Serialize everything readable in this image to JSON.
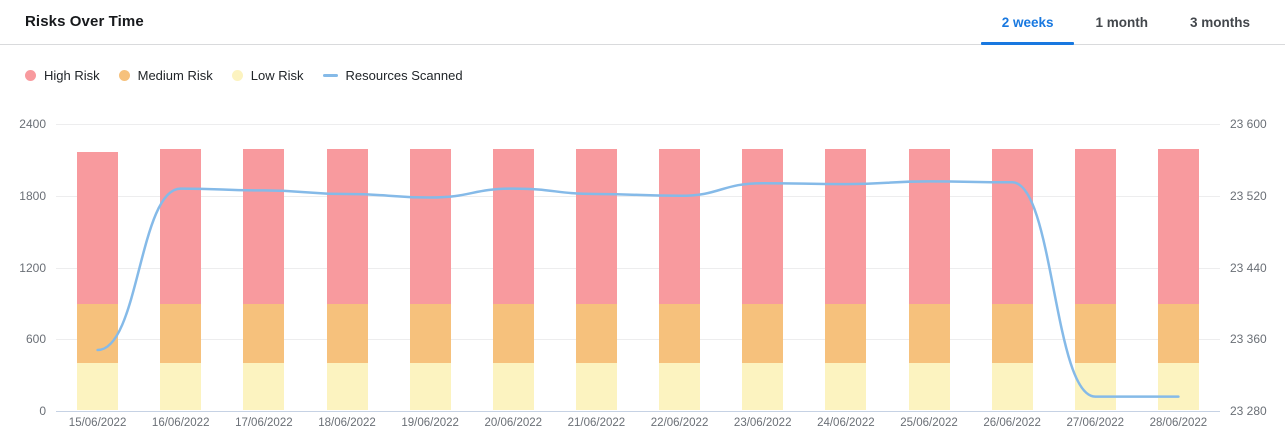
{
  "header": {
    "title": "Risks Over Time",
    "tabs": [
      {
        "label": "2 weeks",
        "active": true
      },
      {
        "label": "1 month",
        "active": false
      },
      {
        "label": "3 months",
        "active": false
      }
    ],
    "tab_active_color": "#1878e0"
  },
  "legend": [
    {
      "label": "High Risk",
      "swatch": "dot",
      "color": "#f89a9e"
    },
    {
      "label": "Medium Risk",
      "swatch": "dot",
      "color": "#f6c17c"
    },
    {
      "label": "Low Risk",
      "swatch": "dot",
      "color": "#fcf3c0"
    },
    {
      "label": "Resources Scanned",
      "swatch": "line",
      "color": "#85bae8"
    }
  ],
  "chart_data": {
    "type": "bar+line",
    "title": "Risks Over Time",
    "categories": [
      "15/06/2022",
      "16/06/2022",
      "17/06/2022",
      "18/06/2022",
      "19/06/2022",
      "20/06/2022",
      "21/06/2022",
      "22/06/2022",
      "23/06/2022",
      "24/06/2022",
      "25/06/2022",
      "26/06/2022",
      "27/06/2022",
      "28/06/2022"
    ],
    "series": [
      {
        "name": "Low Risk",
        "type": "bar",
        "stacked": true,
        "axis": "left",
        "color": "#fcf3c0",
        "values": [
          390,
          390,
          390,
          390,
          390,
          390,
          390,
          390,
          390,
          390,
          390,
          390,
          390,
          390
        ]
      },
      {
        "name": "Medium Risk",
        "type": "bar",
        "stacked": true,
        "axis": "left",
        "color": "#f6c17c",
        "values": [
          500,
          500,
          500,
          500,
          500,
          500,
          500,
          500,
          500,
          500,
          500,
          500,
          500,
          500
        ]
      },
      {
        "name": "High Risk",
        "type": "bar",
        "stacked": true,
        "axis": "left",
        "color": "#f89a9e",
        "values": [
          1270,
          1290,
          1290,
          1290,
          1290,
          1290,
          1290,
          1290,
          1290,
          1290,
          1290,
          1290,
          1290,
          1290
        ]
      },
      {
        "name": "Resources Scanned",
        "type": "line",
        "axis": "right",
        "color": "#85bae8",
        "values": [
          23348,
          23528,
          23526,
          23522,
          23518,
          23528,
          23522,
          23520,
          23534,
          23533,
          23536,
          23535,
          23296,
          23296
        ]
      }
    ],
    "left_axis": {
      "min": 0,
      "max": 2400,
      "ticks": [
        0,
        600,
        1200,
        1800,
        2400
      ],
      "labels": [
        "0",
        "600",
        "1200",
        "1800",
        "2400"
      ]
    },
    "right_axis": {
      "min": 23280,
      "max": 23600,
      "ticks": [
        23280,
        23360,
        23440,
        23520,
        23600
      ],
      "labels": [
        "23 280",
        "23 360",
        "23 440",
        "23 520",
        "23 600"
      ]
    },
    "grid": true,
    "legend_position": "top-left",
    "bar_gap_ratio": 0.5
  }
}
